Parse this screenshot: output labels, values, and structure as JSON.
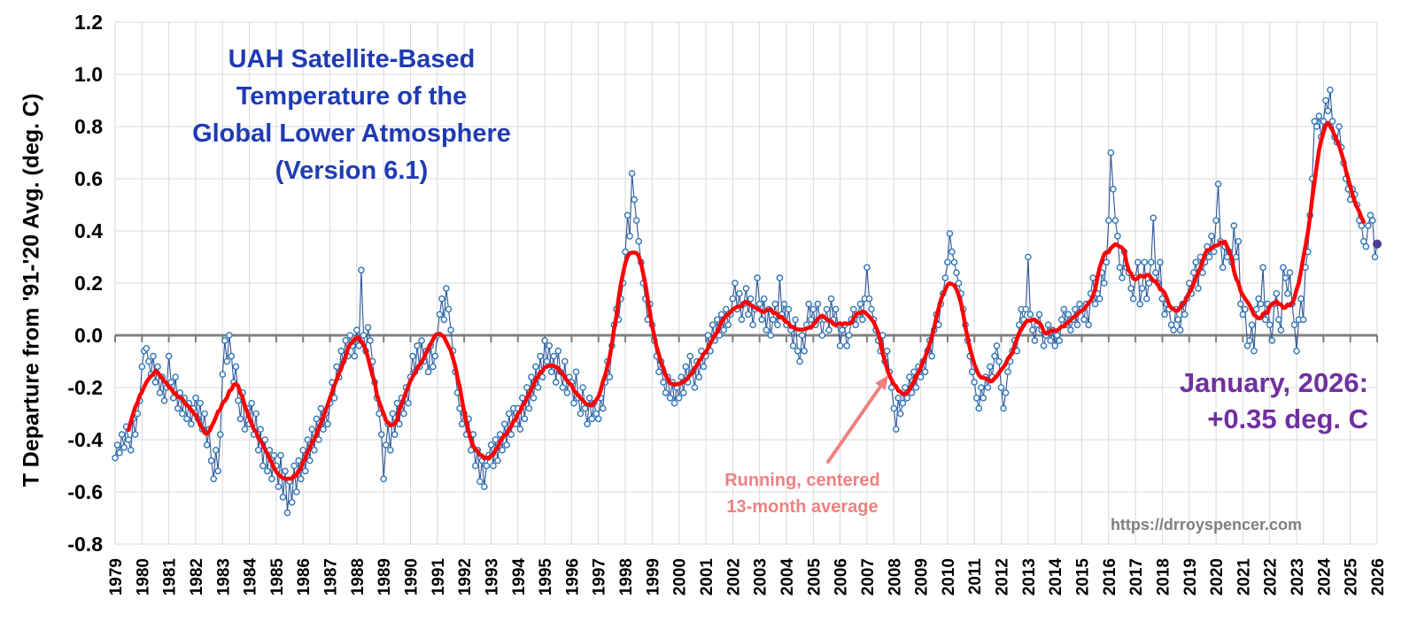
{
  "chart_data": {
    "type": "line",
    "title_lines": [
      "UAH Satellite-Based",
      "Temperature of the",
      "Global Lower Atmosphere",
      "(Version 6.1)"
    ],
    "ylabel": "T Departure from '91-'20 Avg. (deg. C)",
    "ylim": [
      -0.8,
      1.2
    ],
    "ytick_step": 0.2,
    "x_start_year": 1979,
    "x_end_year": 2026,
    "grid": true,
    "legend_position": "none",
    "series": [
      {
        "name": "monthly-anomaly",
        "marker": "open-circle",
        "color_line": "#2f5597",
        "color_marker": "#2e75b6",
        "values_by_year": [
          [
            -0.47,
            -0.42,
            -0.45,
            -0.38,
            -0.43,
            -0.35,
            -0.4,
            -0.44,
            -0.32,
            -0.38,
            -0.3,
            -0.25
          ],
          [
            -0.12,
            -0.06,
            -0.05,
            -0.1,
            -0.15,
            -0.08,
            -0.18,
            -0.12,
            -0.22,
            -0.16,
            -0.25,
            -0.2
          ],
          [
            -0.08,
            -0.18,
            -0.24,
            -0.16,
            -0.28,
            -0.22,
            -0.3,
            -0.24,
            -0.32,
            -0.26,
            -0.34,
            -0.28
          ],
          [
            -0.24,
            -0.32,
            -0.26,
            -0.36,
            -0.3,
            -0.42,
            -0.36,
            -0.48,
            -0.55,
            -0.44,
            -0.52,
            -0.38
          ],
          [
            -0.15,
            -0.02,
            -0.1,
            0.0,
            -0.08,
            -0.18,
            -0.12,
            -0.25,
            -0.32,
            -0.22,
            -0.36,
            -0.28
          ],
          [
            -0.34,
            -0.26,
            -0.38,
            -0.3,
            -0.44,
            -0.36,
            -0.5,
            -0.4,
            -0.52,
            -0.44,
            -0.55,
            -0.46
          ],
          [
            -0.5,
            -0.58,
            -0.46,
            -0.62,
            -0.52,
            -0.68,
            -0.56,
            -0.64,
            -0.5,
            -0.6,
            -0.48,
            -0.55
          ],
          [
            -0.44,
            -0.52,
            -0.4,
            -0.48,
            -0.36,
            -0.44,
            -0.32,
            -0.4,
            -0.28,
            -0.36,
            -0.3,
            -0.34
          ],
          [
            -0.26,
            -0.18,
            -0.24,
            -0.12,
            -0.16,
            -0.06,
            -0.1,
            -0.02,
            -0.08,
            0.0,
            -0.04,
            -0.08
          ],
          [
            0.02,
            -0.04,
            0.25,
            0.0,
            -0.06,
            0.03,
            -0.02,
            -0.1,
            -0.18,
            -0.24,
            -0.3,
            -0.38
          ],
          [
            -0.55,
            -0.42,
            -0.34,
            -0.44,
            -0.3,
            -0.38,
            -0.26,
            -0.34,
            -0.24,
            -0.3,
            -0.2,
            -0.26
          ],
          [
            -0.16,
            -0.08,
            -0.14,
            -0.04,
            -0.12,
            -0.02,
            -0.1,
            -0.06,
            -0.14,
            -0.04,
            -0.12,
            -0.08
          ],
          [
            0.0,
            0.08,
            0.14,
            0.06,
            0.18,
            0.1,
            0.02,
            -0.06,
            -0.14,
            -0.22,
            -0.28,
            -0.34
          ],
          [
            -0.3,
            -0.38,
            -0.32,
            -0.44,
            -0.38,
            -0.5,
            -0.44,
            -0.56,
            -0.48,
            -0.58,
            -0.5,
            -0.46
          ],
          [
            -0.42,
            -0.5,
            -0.4,
            -0.48,
            -0.38,
            -0.44,
            -0.34,
            -0.42,
            -0.3,
            -0.38,
            -0.28,
            -0.34
          ],
          [
            -0.28,
            -0.36,
            -0.24,
            -0.32,
            -0.2,
            -0.28,
            -0.16,
            -0.24,
            -0.12,
            -0.2,
            -0.08,
            -0.16
          ],
          [
            -0.02,
            -0.1,
            -0.04,
            -0.14,
            -0.08,
            -0.18,
            -0.06,
            -0.14,
            -0.2,
            -0.1,
            -0.22,
            -0.16
          ],
          [
            -0.18,
            -0.26,
            -0.14,
            -0.24,
            -0.3,
            -0.2,
            -0.28,
            -0.34,
            -0.24,
            -0.32,
            -0.26,
            -0.3
          ],
          [
            -0.32,
            -0.24,
            -0.28,
            -0.18,
            -0.1,
            -0.16,
            -0.04,
            0.04,
            0.1,
            0.06,
            0.14,
            0.2
          ],
          [
            0.32,
            0.46,
            0.38,
            0.62,
            0.52,
            0.44,
            0.36,
            0.28,
            0.2,
            0.14,
            0.06,
            0.12
          ],
          [
            0.04,
            -0.02,
            -0.08,
            -0.14,
            -0.1,
            -0.18,
            -0.22,
            -0.16,
            -0.24,
            -0.18,
            -0.26,
            -0.2
          ],
          [
            -0.24,
            -0.16,
            -0.22,
            -0.12,
            -0.18,
            -0.08,
            -0.14,
            -0.2,
            -0.1,
            -0.16,
            -0.06,
            -0.12
          ],
          [
            -0.08,
            0.0,
            -0.06,
            0.04,
            -0.02,
            0.06,
            0.0,
            0.08,
            0.02,
            0.1,
            0.04,
            0.08
          ],
          [
            0.14,
            0.2,
            0.1,
            0.16,
            0.06,
            0.12,
            0.18,
            0.08,
            0.14,
            0.04,
            0.1,
            0.22
          ],
          [
            0.12,
            0.06,
            0.14,
            0.02,
            0.1,
            0.0,
            0.06,
            0.12,
            0.04,
            0.22,
            0.08,
            0.12
          ],
          [
            0.04,
            0.1,
            0.02,
            -0.04,
            0.06,
            -0.06,
            -0.1,
            0.0,
            -0.06,
            0.04,
            0.12,
            0.06
          ],
          [
            0.1,
            0.04,
            0.12,
            0.06,
            0.0,
            0.06,
            0.1,
            0.02,
            0.14,
            0.06,
            0.1,
            0.04
          ],
          [
            -0.04,
            0.02,
            0.04,
            -0.04,
            0.0,
            0.06,
            0.1,
            0.04,
            0.08,
            0.12,
            0.06,
            0.14
          ],
          [
            0.26,
            0.14,
            0.1,
            0.06,
            0.02,
            -0.02,
            -0.06,
            0.0,
            -0.1,
            -0.06,
            -0.14,
            -0.2
          ],
          [
            -0.28,
            -0.36,
            -0.24,
            -0.3,
            -0.26,
            -0.2,
            -0.24,
            -0.16,
            -0.22,
            -0.14,
            -0.2,
            -0.12
          ],
          [
            -0.16,
            -0.1,
            -0.14,
            -0.06,
            -0.02,
            -0.08,
            0.02,
            0.08,
            0.04,
            0.12,
            0.16,
            0.22
          ],
          [
            0.28,
            0.39,
            0.32,
            0.28,
            0.24,
            0.2,
            0.16,
            0.1,
            0.04,
            -0.02,
            -0.08,
            -0.14
          ],
          [
            -0.18,
            -0.24,
            -0.28,
            -0.2,
            -0.24,
            -0.16,
            -0.2,
            -0.12,
            -0.16,
            -0.08,
            -0.04,
            -0.1
          ],
          [
            -0.2,
            -0.28,
            -0.22,
            -0.14,
            -0.1,
            -0.06,
            -0.02,
            -0.06,
            0.04,
            0.1,
            0.06,
            0.1
          ],
          [
            0.3,
            0.08,
            0.02,
            -0.02,
            0.04,
            0.08,
            0.02,
            -0.04,
            0.0,
            0.04,
            -0.02,
            0.02
          ],
          [
            -0.04,
            0.0,
            -0.02,
            0.06,
            0.1,
            0.04,
            0.08,
            0.02,
            0.06,
            0.1,
            0.04,
            0.12
          ],
          [
            0.1,
            0.06,
            0.12,
            0.04,
            0.16,
            0.22,
            0.12,
            0.16,
            0.14,
            0.24,
            0.2,
            0.28
          ],
          [
            0.44,
            0.7,
            0.56,
            0.44,
            0.38,
            0.26,
            0.22,
            0.32,
            0.26,
            0.24,
            0.18,
            0.14
          ],
          [
            0.22,
            0.28,
            0.12,
            0.18,
            0.28,
            0.14,
            0.2,
            0.28,
            0.45,
            0.24,
            0.2,
            0.28
          ],
          [
            0.14,
            0.08,
            0.12,
            0.1,
            0.04,
            0.02,
            0.1,
            0.06,
            0.02,
            0.12,
            0.08,
            0.14
          ],
          [
            0.2,
            0.16,
            0.24,
            0.28,
            0.18,
            0.3,
            0.24,
            0.28,
            0.34,
            0.3,
            0.38,
            0.32
          ],
          [
            0.44,
            0.58,
            0.36,
            0.26,
            0.34,
            0.3,
            0.32,
            0.28,
            0.42,
            0.3,
            0.36,
            0.12
          ],
          [
            0.08,
            0.1,
            -0.04,
            -0.02,
            0.04,
            -0.06,
            0.1,
            0.14,
            0.12,
            0.26,
            0.06,
            0.12
          ],
          [
            0.04,
            -0.02,
            0.12,
            0.16,
            0.06,
            0.02,
            0.26,
            0.22,
            0.16,
            0.24,
            0.12,
            0.04
          ],
          [
            -0.06,
            0.06,
            0.14,
            0.06,
            0.26,
            0.32,
            0.46,
            0.6,
            0.82,
            0.8,
            0.84,
            0.76
          ],
          [
            0.82,
            0.9,
            0.86,
            0.94,
            0.82,
            0.76,
            0.74,
            0.8,
            0.72,
            0.66,
            0.6,
            0.56
          ],
          [
            0.52,
            0.56,
            0.54,
            0.5,
            0.44,
            0.42,
            0.36,
            0.34,
            0.42,
            0.46,
            0.44,
            0.3
          ],
          [
            0.35
          ]
        ]
      },
      {
        "name": "running-13-month-average",
        "color": "#ff0000",
        "derived_from": "monthly-anomaly",
        "window_months": 13
      }
    ],
    "latest_point": {
      "label": "January, 2026:",
      "value_label": "+0.35 deg. C",
      "value": 0.35,
      "month": "2026-01",
      "color": "#4a3f92"
    },
    "annotations": {
      "running_avg": {
        "lines": [
          "Running, centered",
          "13-month average"
        ],
        "color": "#f08080"
      },
      "watermark": "https://drroyspencer.com"
    },
    "colors": {
      "title": "#1f3bb3",
      "axis_text": "#000000",
      "grid": "#d9d9d9",
      "zero_line": "#808080",
      "annotation_purple": "#7030a0",
      "watermark_gray": "#7f7f7f",
      "background": "#ffffff"
    }
  }
}
